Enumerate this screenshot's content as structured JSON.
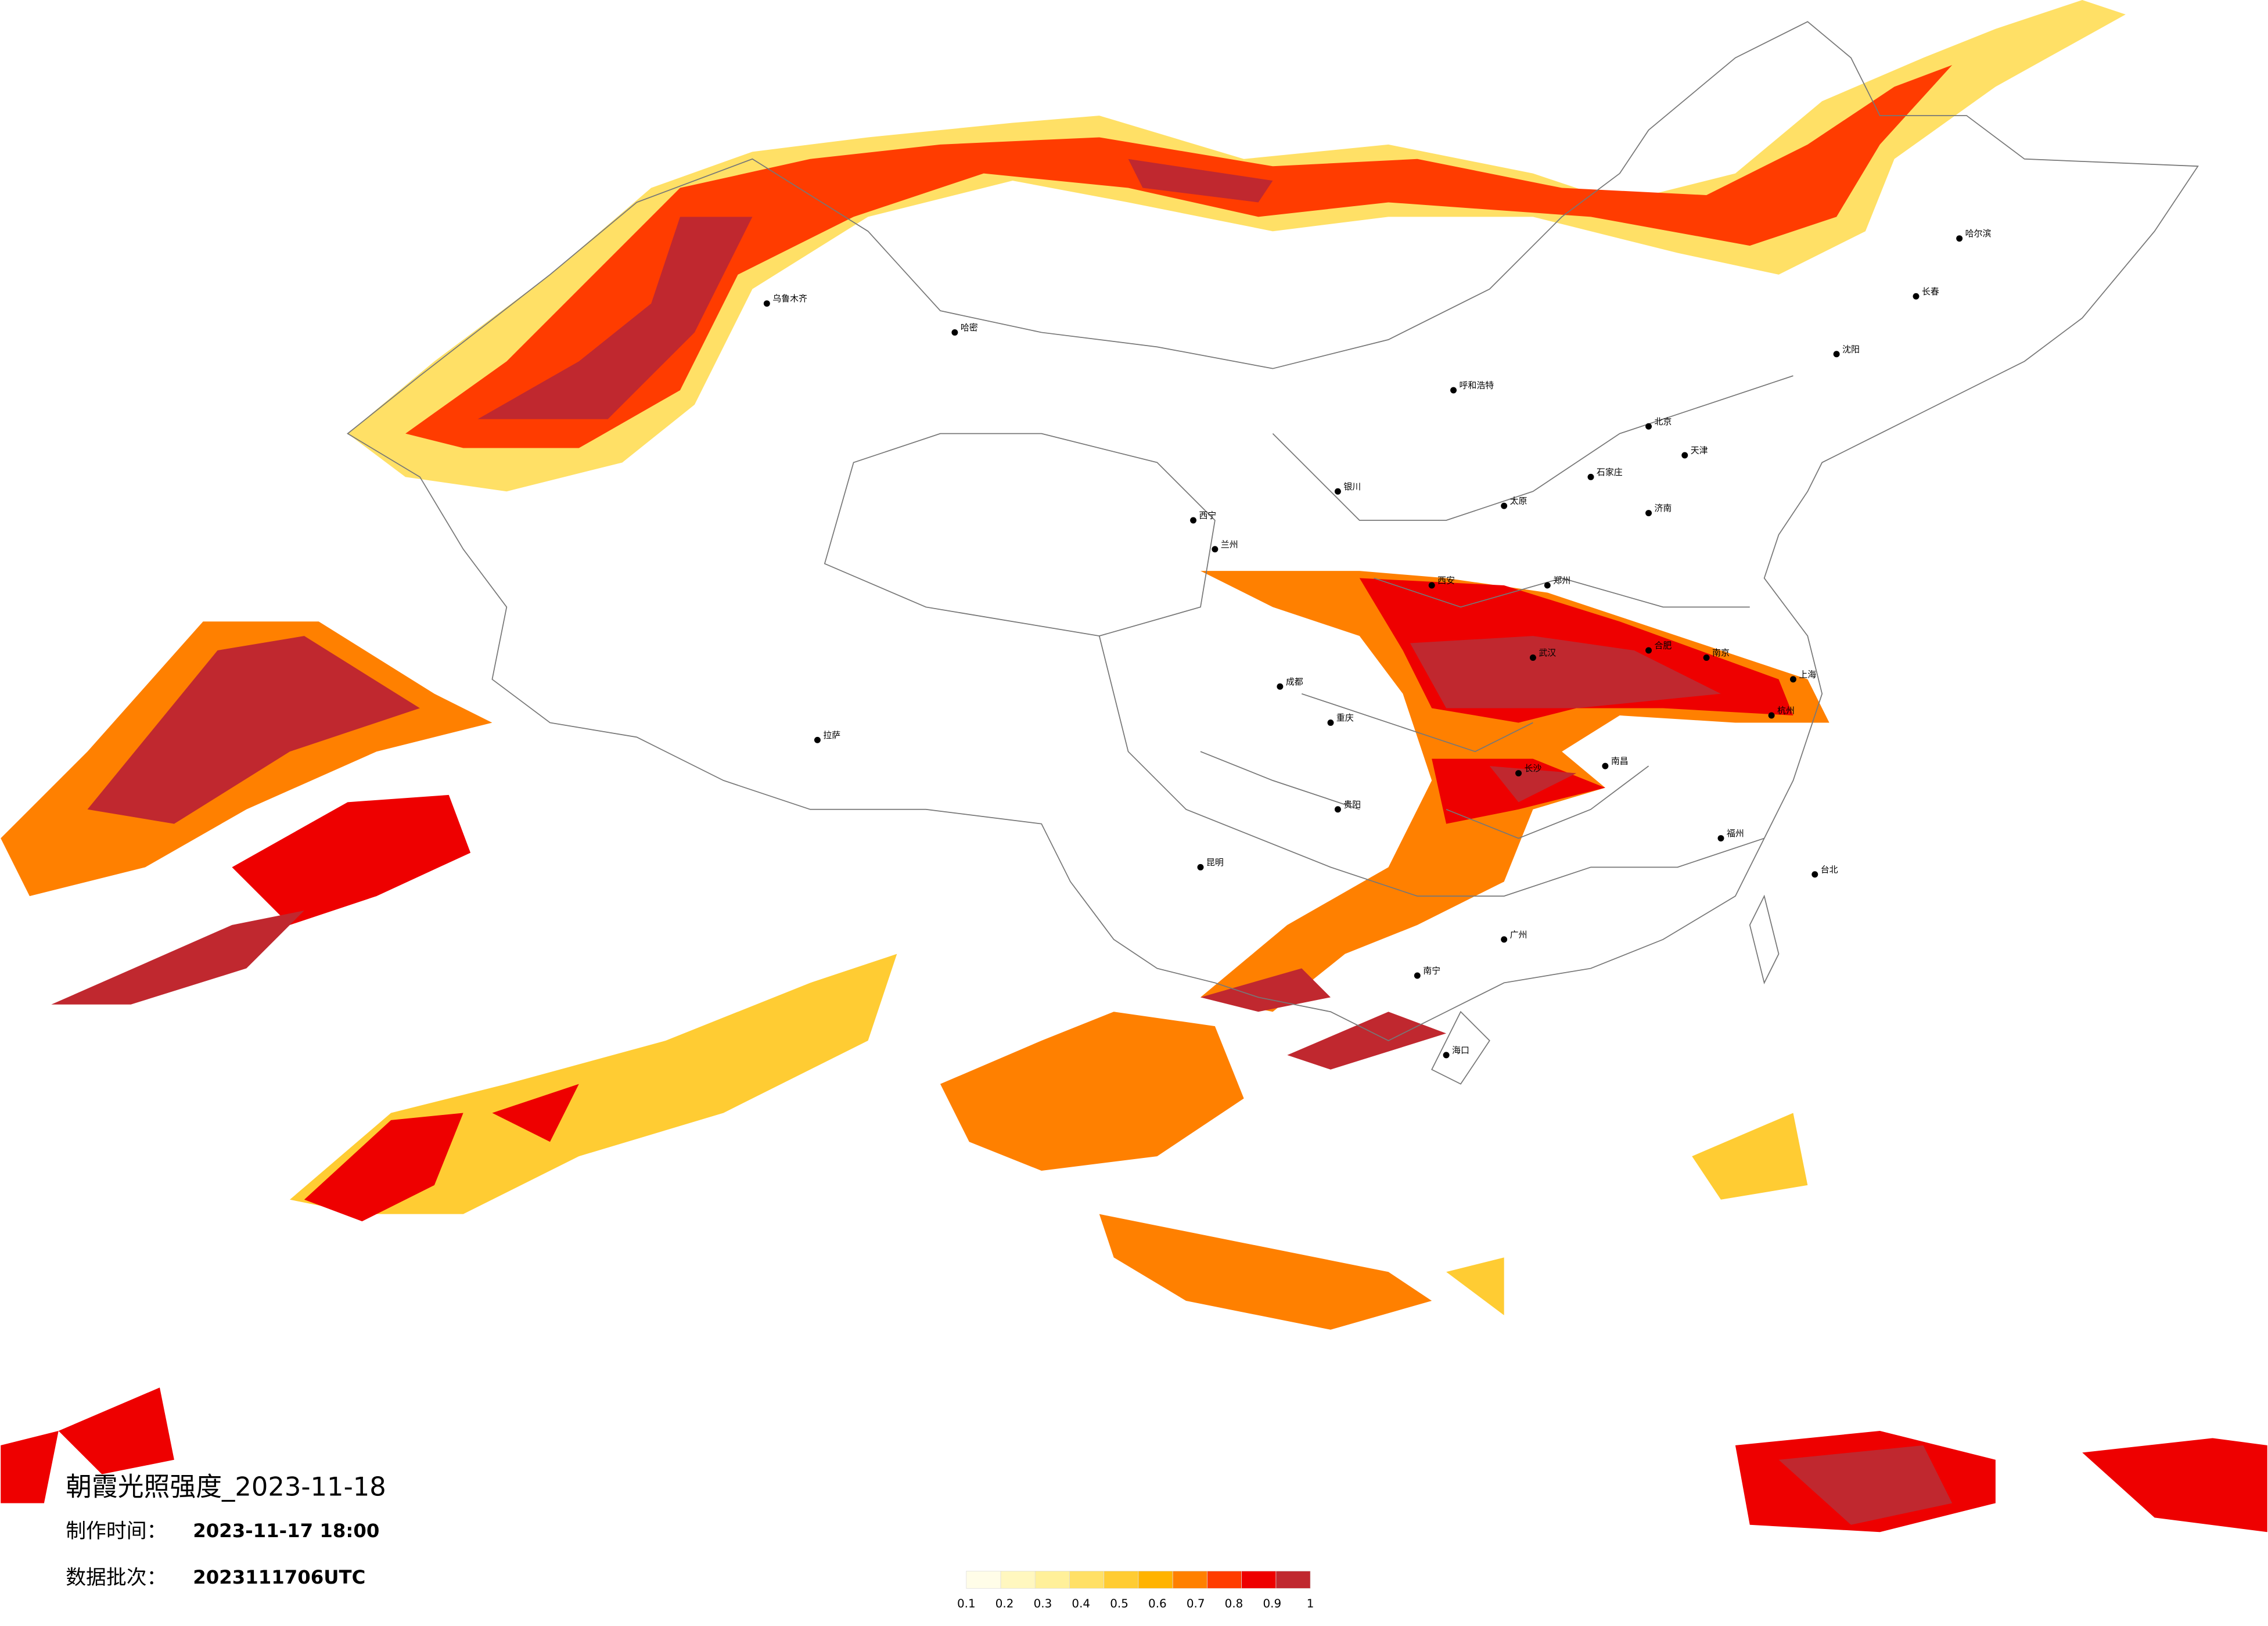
{
  "title": "朝霞光照强度_2023-11-18",
  "production_time": {
    "label": "制作时间：",
    "value": "2023-11-17 18:00"
  },
  "data_batch": {
    "label": "数据批次：",
    "value": "2023111706UTC"
  },
  "legend": {
    "colors": [
      "#fffde8",
      "#fff7bf",
      "#fff09a",
      "#ffe066",
      "#ffcc33",
      "#ffb300",
      "#ff8000",
      "#ff3c00",
      "#ee0000",
      "#c0282f"
    ],
    "ticks": [
      0.1,
      0.2,
      0.3,
      0.4,
      0.5,
      0.6,
      0.7,
      0.8,
      0.9,
      1
    ]
  },
  "cities": [
    "乌鲁木齐",
    "哈密",
    "拉萨",
    "西宁",
    "兰州",
    "银川",
    "呼和浩特",
    "北京",
    "天津",
    "石家庄",
    "太原",
    "济南",
    "郑州",
    "西安",
    "成都",
    "重庆",
    "武汉",
    "长沙",
    "南京",
    "上海",
    "杭州",
    "合肥",
    "南昌",
    "福州",
    "广州",
    "南宁",
    "昆明",
    "贵阳",
    "海口",
    "沈阳",
    "长春",
    "哈尔滨",
    "台北"
  ]
}
